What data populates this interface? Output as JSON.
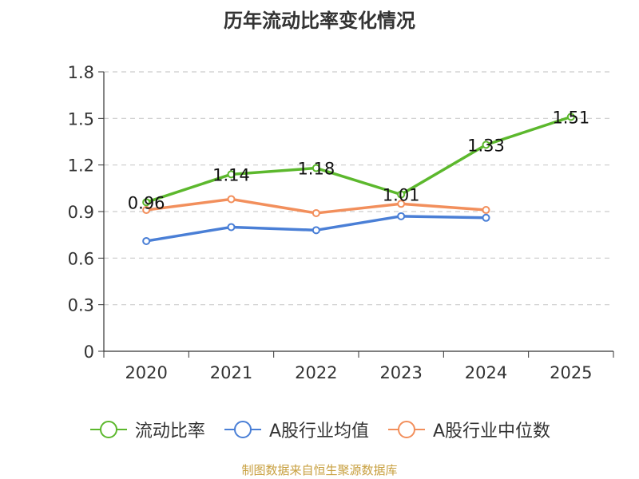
{
  "chart_data": {
    "type": "line",
    "title": "历年流动比率变化情况",
    "categories": [
      "2020",
      "2021",
      "2022",
      "2023",
      "2024",
      "2025"
    ],
    "ylim": [
      0,
      1.8
    ],
    "yticks": [
      "0",
      "0.3",
      "0.6",
      "0.9",
      "1.2",
      "1.5",
      "1.8"
    ],
    "grid": true,
    "legend_position": "bottom",
    "series": [
      {
        "name": "流动比率",
        "color": "#5cb82d",
        "values": [
          0.96,
          1.14,
          1.18,
          1.01,
          1.33,
          1.51
        ],
        "labels": [
          "0.96",
          "1.14",
          "1.18",
          "1.01",
          "1.33",
          "1.51"
        ]
      },
      {
        "name": "A股行业均值",
        "color": "#4a7fd6",
        "values": [
          0.71,
          0.8,
          0.78,
          0.87,
          0.86,
          null
        ]
      },
      {
        "name": "A股行业中位数",
        "color": "#f28f5c",
        "values": [
          0.91,
          0.98,
          0.89,
          0.95,
          0.91,
          null
        ]
      }
    ],
    "source": "制图数据来自恒生聚源数据库"
  }
}
